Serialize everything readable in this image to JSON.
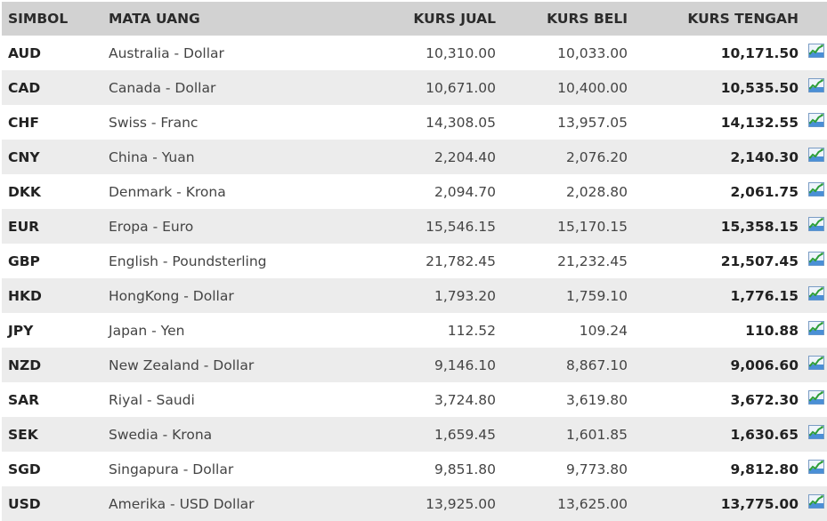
{
  "header": {
    "symbol": "SIMBOL",
    "currency": "MATA UANG",
    "sell": "KURS JUAL",
    "buy": "KURS BELI",
    "mid": "KURS TENGAH"
  },
  "icons": {
    "row_chart_icon": "line-chart-icon"
  },
  "colors": {
    "header_bg": "#d2d2d2",
    "row_alt_bg": "#ececec",
    "icon_green": "#2e9e3a",
    "icon_blue": "#4a8fd6"
  },
  "rows": [
    {
      "symbol": "AUD",
      "currency": "Australia - Dollar",
      "sell": "10,310.00",
      "buy": "10,033.00",
      "mid": "10,171.50"
    },
    {
      "symbol": "CAD",
      "currency": "Canada - Dollar",
      "sell": "10,671.00",
      "buy": "10,400.00",
      "mid": "10,535.50"
    },
    {
      "symbol": "CHF",
      "currency": "Swiss - Franc",
      "sell": "14,308.05",
      "buy": "13,957.05",
      "mid": "14,132.55"
    },
    {
      "symbol": "CNY",
      "currency": "China - Yuan",
      "sell": "2,204.40",
      "buy": "2,076.20",
      "mid": "2,140.30"
    },
    {
      "symbol": "DKK",
      "currency": "Denmark - Krona",
      "sell": "2,094.70",
      "buy": "2,028.80",
      "mid": "2,061.75"
    },
    {
      "symbol": "EUR",
      "currency": "Eropa - Euro",
      "sell": "15,546.15",
      "buy": "15,170.15",
      "mid": "15,358.15"
    },
    {
      "symbol": "GBP",
      "currency": "English - Poundsterling",
      "sell": "21,782.45",
      "buy": "21,232.45",
      "mid": "21,507.45"
    },
    {
      "symbol": "HKD",
      "currency": "HongKong - Dollar",
      "sell": "1,793.20",
      "buy": "1,759.10",
      "mid": "1,776.15"
    },
    {
      "symbol": "JPY",
      "currency": "Japan - Yen",
      "sell": "112.52",
      "buy": "109.24",
      "mid": "110.88"
    },
    {
      "symbol": "NZD",
      "currency": "New Zealand - Dollar",
      "sell": "9,146.10",
      "buy": "8,867.10",
      "mid": "9,006.60"
    },
    {
      "symbol": "SAR",
      "currency": "Riyal - Saudi",
      "sell": "3,724.80",
      "buy": "3,619.80",
      "mid": "3,672.30"
    },
    {
      "symbol": "SEK",
      "currency": "Swedia - Krona",
      "sell": "1,659.45",
      "buy": "1,601.85",
      "mid": "1,630.65"
    },
    {
      "symbol": "SGD",
      "currency": "Singapura - Dollar",
      "sell": "9,851.80",
      "buy": "9,773.80",
      "mid": "9,812.80"
    },
    {
      "symbol": "USD",
      "currency": "Amerika - USD Dollar",
      "sell": "13,925.00",
      "buy": "13,625.00",
      "mid": "13,775.00"
    }
  ]
}
